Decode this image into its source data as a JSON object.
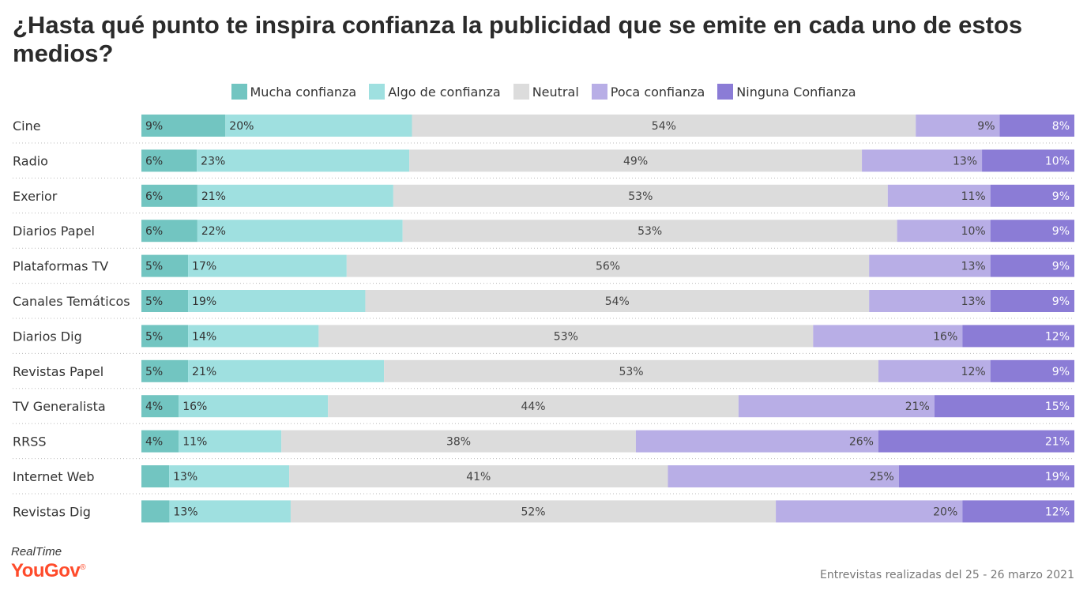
{
  "title": "¿Hasta qué punto te inspira confianza la publicidad que se emite en cada uno de estos medios?",
  "footer": {
    "realtime": "RealTime",
    "brand": "YouGov",
    "note": "Entrevistas realizadas del 25 - 26 marzo 2021"
  },
  "colors": {
    "mucha": "#72c5c1",
    "algo": "#9fe0e0",
    "neutral": "#dcdcdc",
    "poca": "#b8aee6",
    "ninguna": "#8b7cd6"
  },
  "chart_data": {
    "type": "bar",
    "orientation": "horizontal-stacked-100",
    "categories": [
      "Cine",
      "Radio",
      "Exerior",
      "Diarios Papel",
      "Plataformas TV",
      "Canales Temáticos",
      "Diarios Dig",
      "Revistas Papel",
      "TV Generalista",
      "RRSS",
      "Internet Web",
      "Revistas Dig"
    ],
    "series": [
      {
        "name": "Mucha confianza",
        "values": [
          9,
          6,
          6,
          6,
          5,
          5,
          5,
          5,
          4,
          4,
          3,
          3
        ],
        "labels": [
          "9%",
          "6%",
          "6%",
          "6%",
          "5%",
          "5%",
          "5%",
          "5%",
          "4%",
          "4%",
          "",
          ""
        ]
      },
      {
        "name": "Algo de confianza",
        "values": [
          20,
          23,
          21,
          22,
          17,
          19,
          14,
          21,
          16,
          11,
          13,
          13
        ],
        "labels": [
          "20%",
          "23%",
          "21%",
          "22%",
          "17%",
          "19%",
          "14%",
          "21%",
          "16%",
          "11%",
          "13%",
          "13%"
        ]
      },
      {
        "name": "Neutral",
        "values": [
          54,
          49,
          53,
          53,
          56,
          54,
          53,
          53,
          44,
          38,
          41,
          52
        ],
        "labels": [
          "54%",
          "49%",
          "53%",
          "53%",
          "56%",
          "54%",
          "53%",
          "53%",
          "44%",
          "38%",
          "41%",
          "52%"
        ]
      },
      {
        "name": "Poca confianza",
        "values": [
          9,
          13,
          11,
          10,
          13,
          13,
          16,
          12,
          21,
          26,
          25,
          20
        ],
        "labels": [
          "9%",
          "13%",
          "11%",
          "10%",
          "13%",
          "13%",
          "16%",
          "12%",
          "21%",
          "26%",
          "25%",
          "20%"
        ]
      },
      {
        "name": "Ninguna Confianza",
        "values": [
          8,
          10,
          9,
          9,
          9,
          9,
          12,
          9,
          15,
          21,
          19,
          12
        ],
        "labels": [
          "8%",
          "10%",
          "9%",
          "9%",
          "9%",
          "9%",
          "12%",
          "9%",
          "15%",
          "21%",
          "19%",
          "12%"
        ]
      }
    ],
    "legend": "top-center",
    "grid": false
  }
}
